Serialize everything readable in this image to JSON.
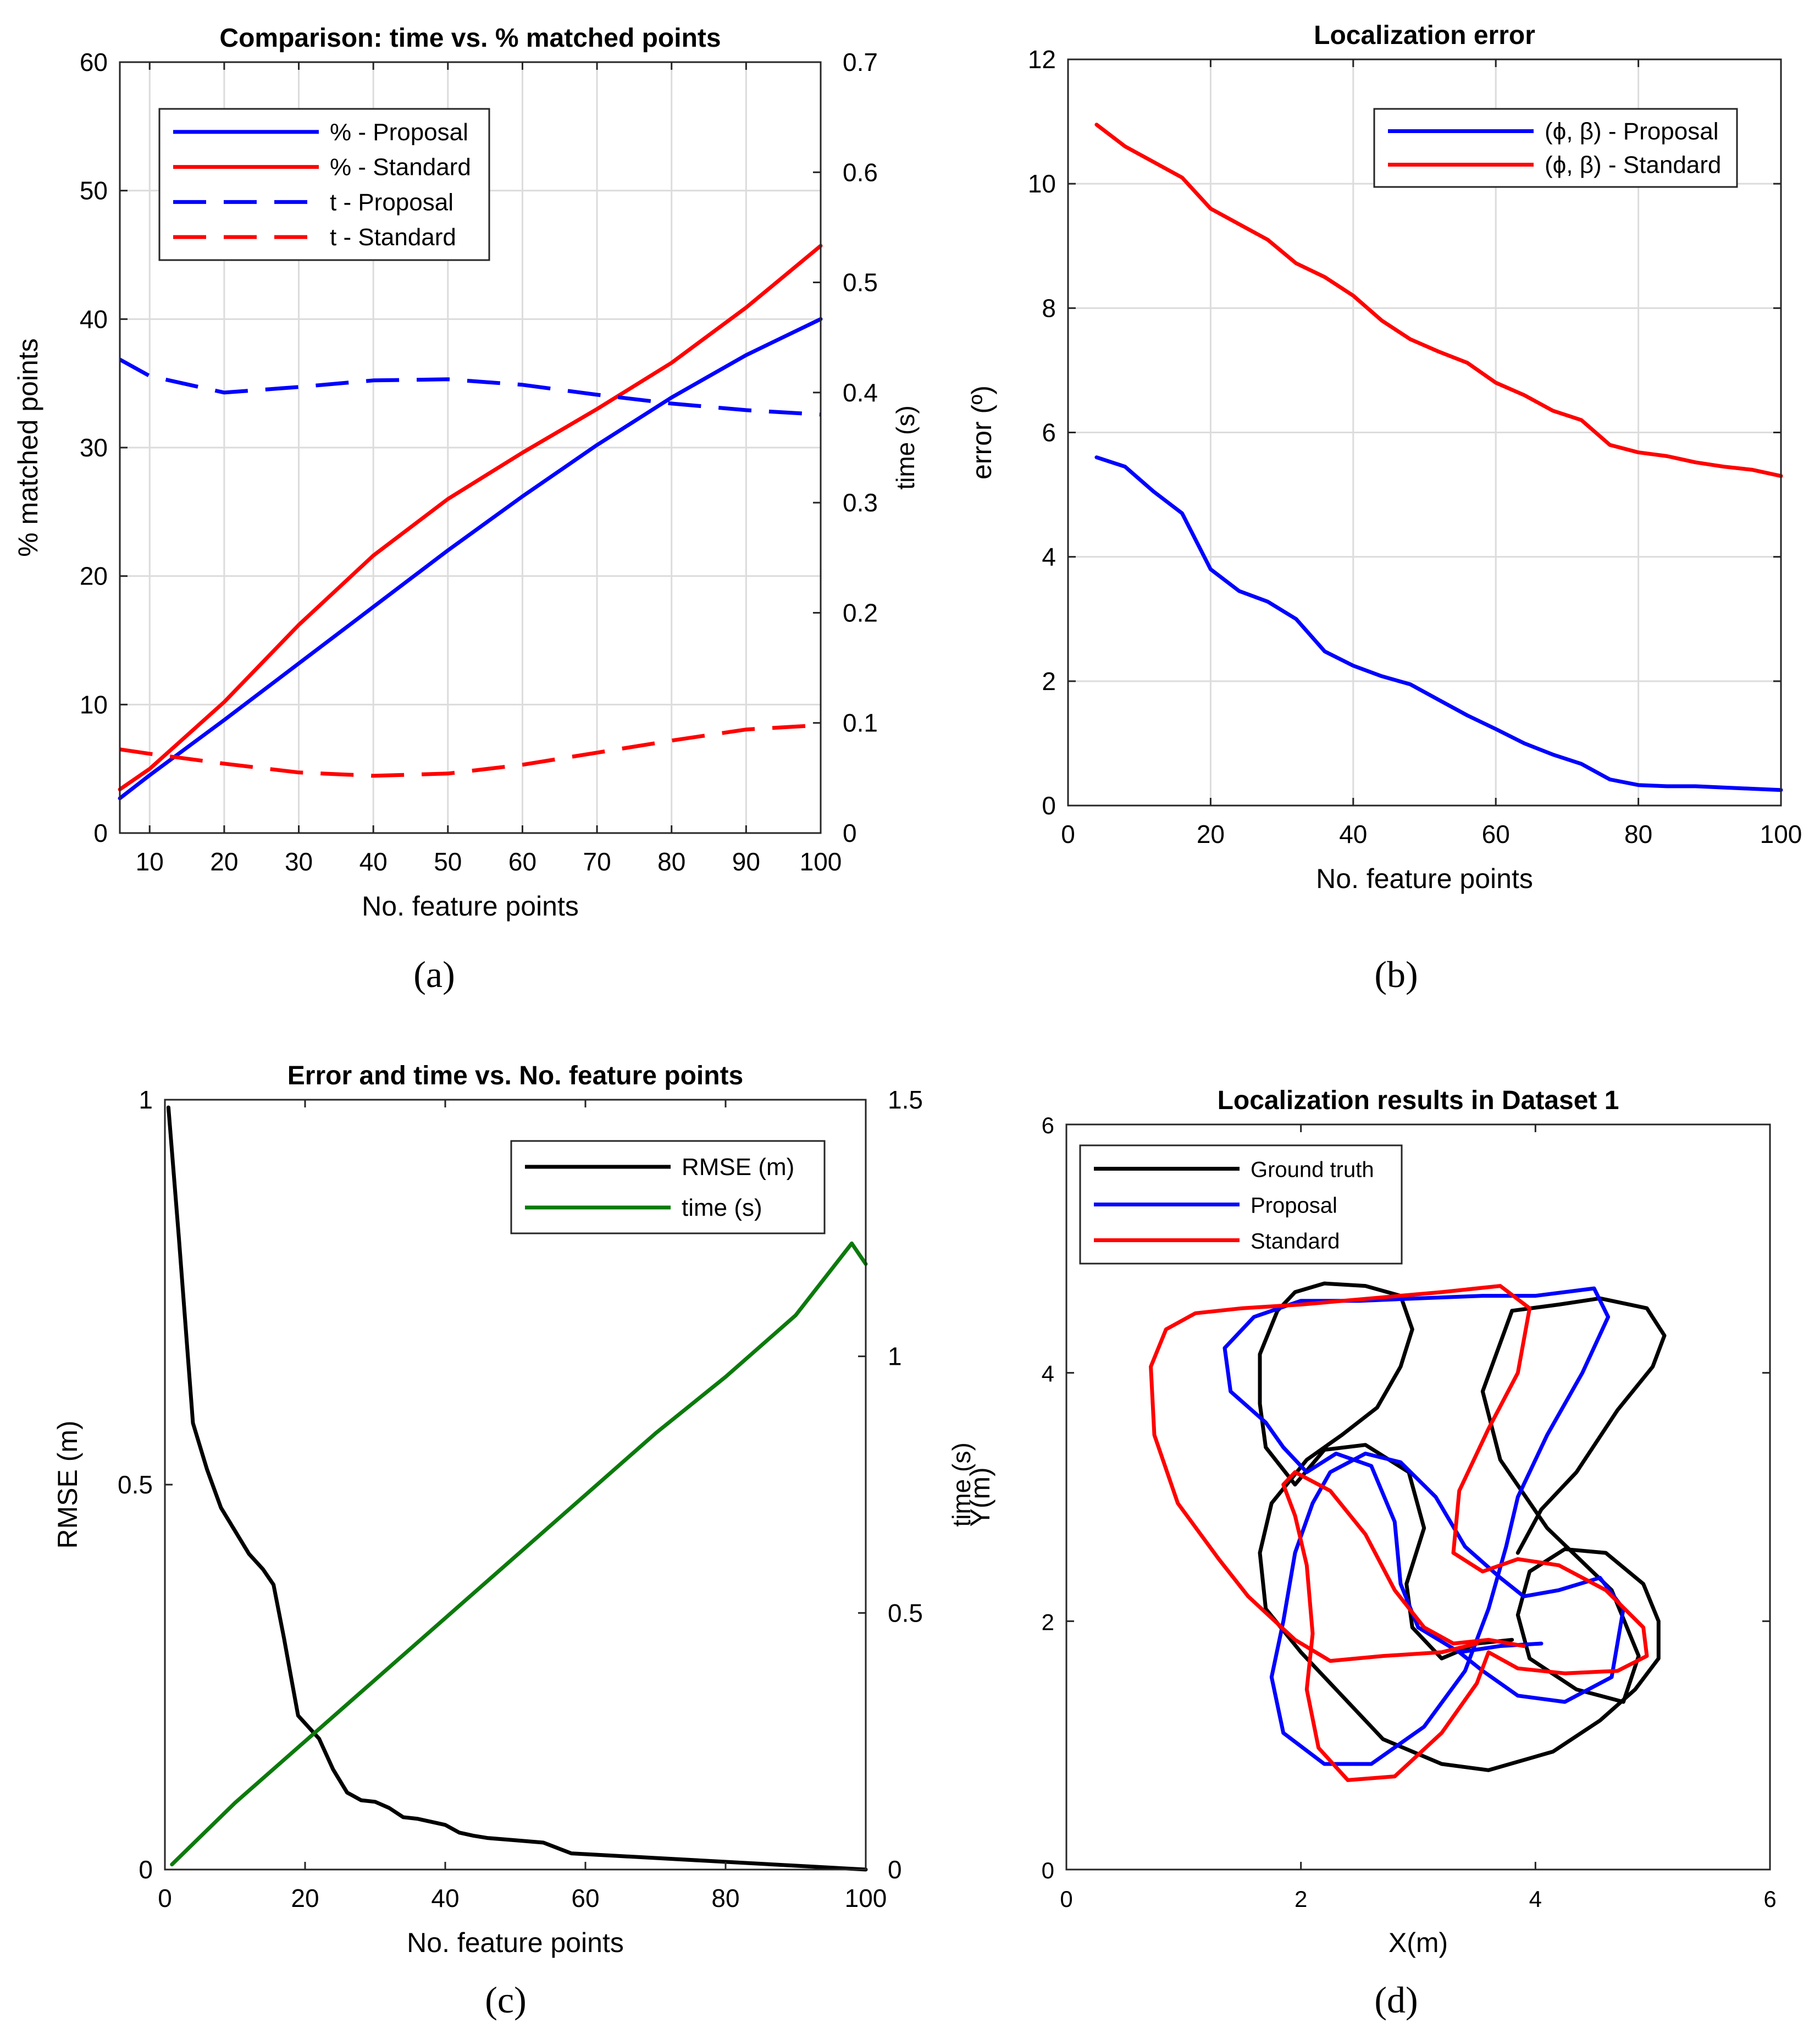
{
  "colors": {
    "blue": "#0000ff",
    "red": "#ff0000",
    "black": "#000000",
    "green": "#0b7a0b",
    "grid": "#dcdcdc",
    "axis": "#262626"
  },
  "panels": {
    "a": {
      "label": "(a)"
    },
    "b": {
      "label": "(b)"
    },
    "c": {
      "label": "(c)"
    },
    "d": {
      "label": "(d)"
    }
  },
  "chart_data": [
    {
      "id": "a",
      "type": "line",
      "title": "Comparison: time vs. % matched points",
      "xlabel": "No. feature points",
      "ylabel": "% matched points",
      "y2label": "time (s)",
      "xlim": [
        6,
        100
      ],
      "ylim": [
        0,
        60
      ],
      "y2lim": [
        0,
        0.7
      ],
      "xticks": [
        "10",
        "20",
        "30",
        "40",
        "50",
        "60",
        "70",
        "80",
        "90",
        "100"
      ],
      "yticks": [
        "0",
        "10",
        "20",
        "30",
        "40",
        "50",
        "60"
      ],
      "y2ticks": [
        "0",
        "0.1",
        "0.2",
        "0.3",
        "0.4",
        "0.5",
        "0.6",
        "0.7"
      ],
      "grid": true,
      "legend_position": "top-left",
      "series": [
        {
          "name": "% - Proposal",
          "axis": "left",
          "color": "blue",
          "dash": false,
          "x": [
            6,
            10,
            20,
            30,
            40,
            50,
            60,
            70,
            80,
            90,
            100
          ],
          "y": [
            2.7,
            4.5,
            8.8,
            13.2,
            17.6,
            22.0,
            26.2,
            30.2,
            33.9,
            37.2,
            40.0
          ]
        },
        {
          "name": "% - Standard",
          "axis": "left",
          "color": "red",
          "dash": false,
          "x": [
            6,
            10,
            20,
            30,
            40,
            50,
            60,
            70,
            80,
            90,
            100
          ],
          "y": [
            3.4,
            5.0,
            10.2,
            16.2,
            21.6,
            26.0,
            29.6,
            33.0,
            36.6,
            40.9,
            45.7
          ]
        },
        {
          "name": "t - Proposal",
          "axis": "right",
          "color": "blue",
          "dash": true,
          "x": [
            6,
            10,
            20,
            30,
            40,
            50,
            60,
            70,
            80,
            90,
            100
          ],
          "y": [
            0.43,
            0.415,
            0.4,
            0.405,
            0.411,
            0.412,
            0.407,
            0.398,
            0.39,
            0.384,
            0.38
          ]
        },
        {
          "name": "t - Standard",
          "axis": "right",
          "color": "red",
          "dash": true,
          "x": [
            6,
            10,
            20,
            30,
            40,
            50,
            60,
            70,
            80,
            90,
            100
          ],
          "y": [
            0.076,
            0.072,
            0.063,
            0.055,
            0.052,
            0.054,
            0.062,
            0.073,
            0.084,
            0.094,
            0.098
          ]
        }
      ]
    },
    {
      "id": "b",
      "type": "line",
      "title": "Localization error",
      "xlabel": "No. feature points",
      "ylabel": "error (º)",
      "xlim": [
        0,
        100
      ],
      "ylim": [
        0,
        12
      ],
      "xticks": [
        "0",
        "20",
        "40",
        "60",
        "80",
        "100"
      ],
      "yticks": [
        "0",
        "2",
        "4",
        "6",
        "8",
        "10",
        "12"
      ],
      "grid": true,
      "legend_position": "top-right",
      "series": [
        {
          "name": "(ϕ, β) - Proposal",
          "color": "blue",
          "x": [
            4,
            8,
            12,
            16,
            20,
            24,
            28,
            32,
            36,
            40,
            44,
            48,
            52,
            56,
            60,
            64,
            68,
            72,
            76,
            80,
            84,
            88,
            92,
            96,
            100
          ],
          "y": [
            5.6,
            5.45,
            5.05,
            4.7,
            3.8,
            3.45,
            3.28,
            3.0,
            2.48,
            2.25,
            2.08,
            1.95,
            1.7,
            1.45,
            1.23,
            1.0,
            0.82,
            0.67,
            0.42,
            0.33,
            0.31,
            0.31,
            0.29,
            0.27,
            0.25
          ]
        },
        {
          "name": "(ϕ, β) - Standard",
          "color": "red",
          "x": [
            4,
            8,
            12,
            16,
            20,
            24,
            28,
            32,
            36,
            40,
            44,
            48,
            52,
            56,
            60,
            64,
            68,
            72,
            76,
            80,
            84,
            88,
            92,
            96,
            100
          ],
          "y": [
            10.95,
            10.6,
            10.35,
            10.1,
            9.6,
            9.35,
            9.1,
            8.72,
            8.5,
            8.2,
            7.8,
            7.5,
            7.3,
            7.12,
            6.8,
            6.6,
            6.35,
            6.2,
            5.8,
            5.68,
            5.62,
            5.52,
            5.45,
            5.4,
            5.3
          ]
        }
      ]
    },
    {
      "id": "c",
      "type": "line",
      "title": "Error and time vs. No. feature points",
      "xlabel": "No. feature points",
      "ylabel": "RMSE (m)",
      "y2label": "time (s)",
      "xlim": [
        0,
        100
      ],
      "ylim": [
        0,
        1
      ],
      "y2lim": [
        0,
        1.5
      ],
      "xticks": [
        "0",
        "20",
        "40",
        "60",
        "80",
        "100"
      ],
      "yticks": [
        "0",
        "0.5",
        "1"
      ],
      "y2ticks": [
        "0",
        "0.5",
        "1",
        "1.5"
      ],
      "grid": false,
      "legend_position": "top-right",
      "series": [
        {
          "name": "RMSE (m)",
          "axis": "left",
          "color": "black",
          "x": [
            0.5,
            2,
            4,
            6,
            8,
            10,
            12,
            14,
            15.5,
            17,
            18,
            19,
            20,
            22,
            24,
            26,
            28,
            30,
            32,
            34,
            36,
            38,
            40,
            42,
            44,
            46,
            50,
            54,
            56,
            58,
            60,
            70,
            80,
            90,
            100
          ],
          "y": [
            0.99,
            0.82,
            0.58,
            0.52,
            0.47,
            0.44,
            0.41,
            0.39,
            0.37,
            0.3,
            0.25,
            0.2,
            0.19,
            0.17,
            0.13,
            0.1,
            0.09,
            0.088,
            0.08,
            0.068,
            0.066,
            0.062,
            0.058,
            0.048,
            0.044,
            0.041,
            0.038,
            0.035,
            0.028,
            0.021,
            0.02,
            0.015,
            0.01,
            0.005,
            0.0
          ]
        },
        {
          "name": "time (s)",
          "axis": "right",
          "color": "green",
          "x": [
            1,
            10,
            20,
            30,
            40,
            50,
            60,
            70,
            80,
            90,
            98,
            100
          ],
          "y": [
            0.01,
            0.13,
            0.25,
            0.37,
            0.49,
            0.61,
            0.73,
            0.85,
            0.96,
            1.08,
            1.22,
            1.18
          ]
        }
      ]
    },
    {
      "id": "d",
      "type": "line",
      "title": "Localization results in Dataset 1",
      "xlabel": "X(m)",
      "ylabel": "Y(m)",
      "xlim": [
        0,
        6
      ],
      "ylim": [
        0,
        6
      ],
      "xticks": [
        "0",
        "2",
        "4",
        "6"
      ],
      "yticks": [
        "0",
        "2",
        "4",
        "6"
      ],
      "grid": false,
      "legend_position": "top-left",
      "series": [
        {
          "name": "Ground truth",
          "color": "black",
          "x": [
            3.8,
            3.5,
            3.2,
            2.95,
            2.9,
            3.05,
            2.92,
            2.55,
            2.2,
            1.95,
            1.7,
            1.65,
            1.65,
            1.8,
            1.95,
            2.2,
            2.55,
            2.85,
            2.95,
            2.85,
            2.65,
            2.35,
            2.05,
            1.75,
            1.65,
            1.7,
            2.0,
            2.3,
            2.7,
            3.2,
            3.6,
            4.15,
            4.55,
            4.85,
            5.05,
            5.05,
            4.92,
            4.6,
            4.25,
            3.95,
            3.85,
            3.95,
            4.35,
            4.75,
            4.88,
            4.65,
            4.1,
            3.7,
            3.55,
            3.8
          ],
          "y": [
            1.85,
            1.82,
            1.7,
            1.95,
            2.3,
            2.75,
            3.2,
            3.42,
            3.38,
            3.1,
            3.4,
            3.75,
            4.15,
            4.5,
            4.65,
            4.72,
            4.7,
            4.62,
            4.35,
            4.05,
            3.72,
            3.5,
            3.3,
            2.95,
            2.55,
            2.1,
            1.75,
            1.45,
            1.05,
            0.85,
            0.8,
            0.95,
            1.2,
            1.45,
            1.7,
            2.0,
            2.3,
            2.55,
            2.58,
            2.4,
            2.05,
            1.7,
            1.45,
            1.35,
            1.72,
            2.25,
            2.75,
            3.3,
            3.85,
            4.5
          ],
          "x2": [
            3.8,
            4.2,
            4.55,
            4.95,
            5.1,
            5.0,
            4.7,
            4.35,
            4.05,
            3.85
          ],
          "y2": [
            4.5,
            4.55,
            4.6,
            4.52,
            4.3,
            4.05,
            3.7,
            3.2,
            2.9,
            2.55
          ]
        },
        {
          "name": "Proposal",
          "color": "blue",
          "x": [
            4.05,
            3.7,
            3.35,
            3.0,
            2.85,
            2.8,
            2.6,
            2.3,
            2.05,
            1.85,
            1.7,
            1.4,
            1.35,
            1.6,
            2.0,
            2.5,
            3.0,
            3.55,
            4.0,
            4.5,
            4.62,
            4.4,
            4.1,
            3.85,
            3.75,
            3.6,
            3.4,
            3.05,
            2.6,
            2.2,
            1.85,
            1.75,
            1.85,
            1.95,
            2.1,
            2.25,
            2.55,
            2.85,
            3.15,
            3.4,
            3.7,
            3.9,
            4.2,
            4.55,
            4.75,
            4.65,
            4.25,
            3.85,
            3.55,
            3.35
          ],
          "y": [
            1.82,
            1.8,
            1.75,
            1.95,
            2.3,
            2.8,
            3.25,
            3.35,
            3.2,
            3.4,
            3.6,
            3.85,
            4.2,
            4.45,
            4.58,
            4.58,
            4.6,
            4.62,
            4.62,
            4.68,
            4.45,
            4.0,
            3.5,
            3.0,
            2.6,
            2.1,
            1.6,
            1.15,
            0.85,
            0.85,
            1.1,
            1.55,
            2.0,
            2.55,
            2.95,
            3.2,
            3.35,
            3.28,
            3.0,
            2.6,
            2.35,
            2.2,
            2.25,
            2.35,
            2.1,
            1.55,
            1.35,
            1.4,
            1.6,
            1.75
          ]
        },
        {
          "name": "Standard",
          "color": "red",
          "x": [
            3.5,
            3.2,
            2.7,
            2.25,
            1.95,
            1.55,
            1.3,
            0.95,
            0.75,
            0.72,
            0.85,
            1.1,
            1.5,
            2.0,
            2.6,
            3.2,
            3.7,
            3.95,
            3.85,
            3.6,
            3.35,
            3.3,
            3.55,
            3.85,
            4.2,
            4.6,
            4.92,
            4.95,
            4.7,
            4.25,
            3.85,
            3.6,
            3.5,
            3.2,
            2.8,
            2.4,
            2.15,
            2.05,
            2.1,
            2.05,
            1.95,
            1.85,
            1.95,
            2.25,
            2.55,
            2.8,
            3.05,
            3.3,
            3.6,
            3.9
          ],
          "y": [
            1.82,
            1.75,
            1.72,
            1.68,
            1.85,
            2.2,
            2.5,
            2.95,
            3.5,
            4.05,
            4.35,
            4.48,
            4.52,
            4.55,
            4.6,
            4.65,
            4.7,
            4.52,
            4.0,
            3.55,
            3.05,
            2.55,
            2.4,
            2.5,
            2.45,
            2.25,
            1.95,
            1.72,
            1.6,
            1.58,
            1.62,
            1.75,
            1.5,
            1.1,
            0.75,
            0.72,
            0.98,
            1.45,
            1.9,
            2.45,
            2.85,
            3.1,
            3.2,
            3.05,
            2.7,
            2.25,
            1.95,
            1.82,
            1.85,
            1.8
          ]
        }
      ]
    }
  ]
}
